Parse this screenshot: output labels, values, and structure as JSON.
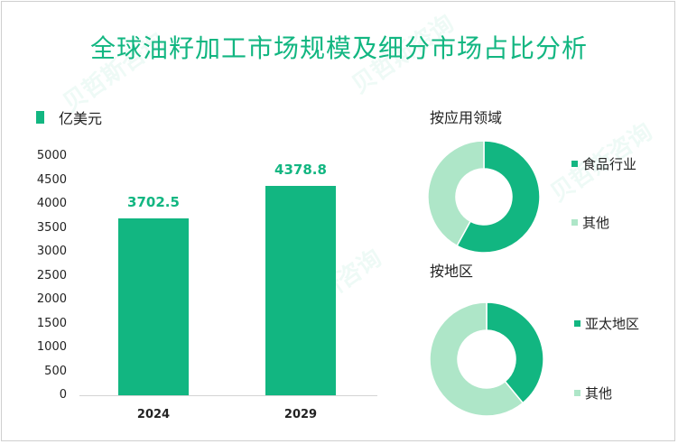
{
  "title": "全球油籽加工市场规模及细分市场占比分析",
  "colors": {
    "primary": "#12b681",
    "light": "#aee6c8"
  },
  "chart_data": [
    {
      "type": "bar",
      "legend": "亿美元",
      "categories": [
        "2024",
        "2029"
      ],
      "values": [
        3702.5,
        4378.8
      ],
      "value_labels": [
        "3702.5",
        "4378.8"
      ],
      "ylim": [
        0,
        5000
      ],
      "yticks": [
        "0",
        "500",
        "1000",
        "1500",
        "2000",
        "2500",
        "3000",
        "3500",
        "4000",
        "4500",
        "5000"
      ]
    },
    {
      "type": "pie",
      "title": "按应用领域",
      "labels": [
        "食品行业",
        "其他"
      ],
      "values": [
        58,
        42
      ]
    },
    {
      "type": "pie",
      "title": "按地区",
      "labels": [
        "亚太地区",
        "其他"
      ],
      "values": [
        39,
        61
      ]
    }
  ]
}
